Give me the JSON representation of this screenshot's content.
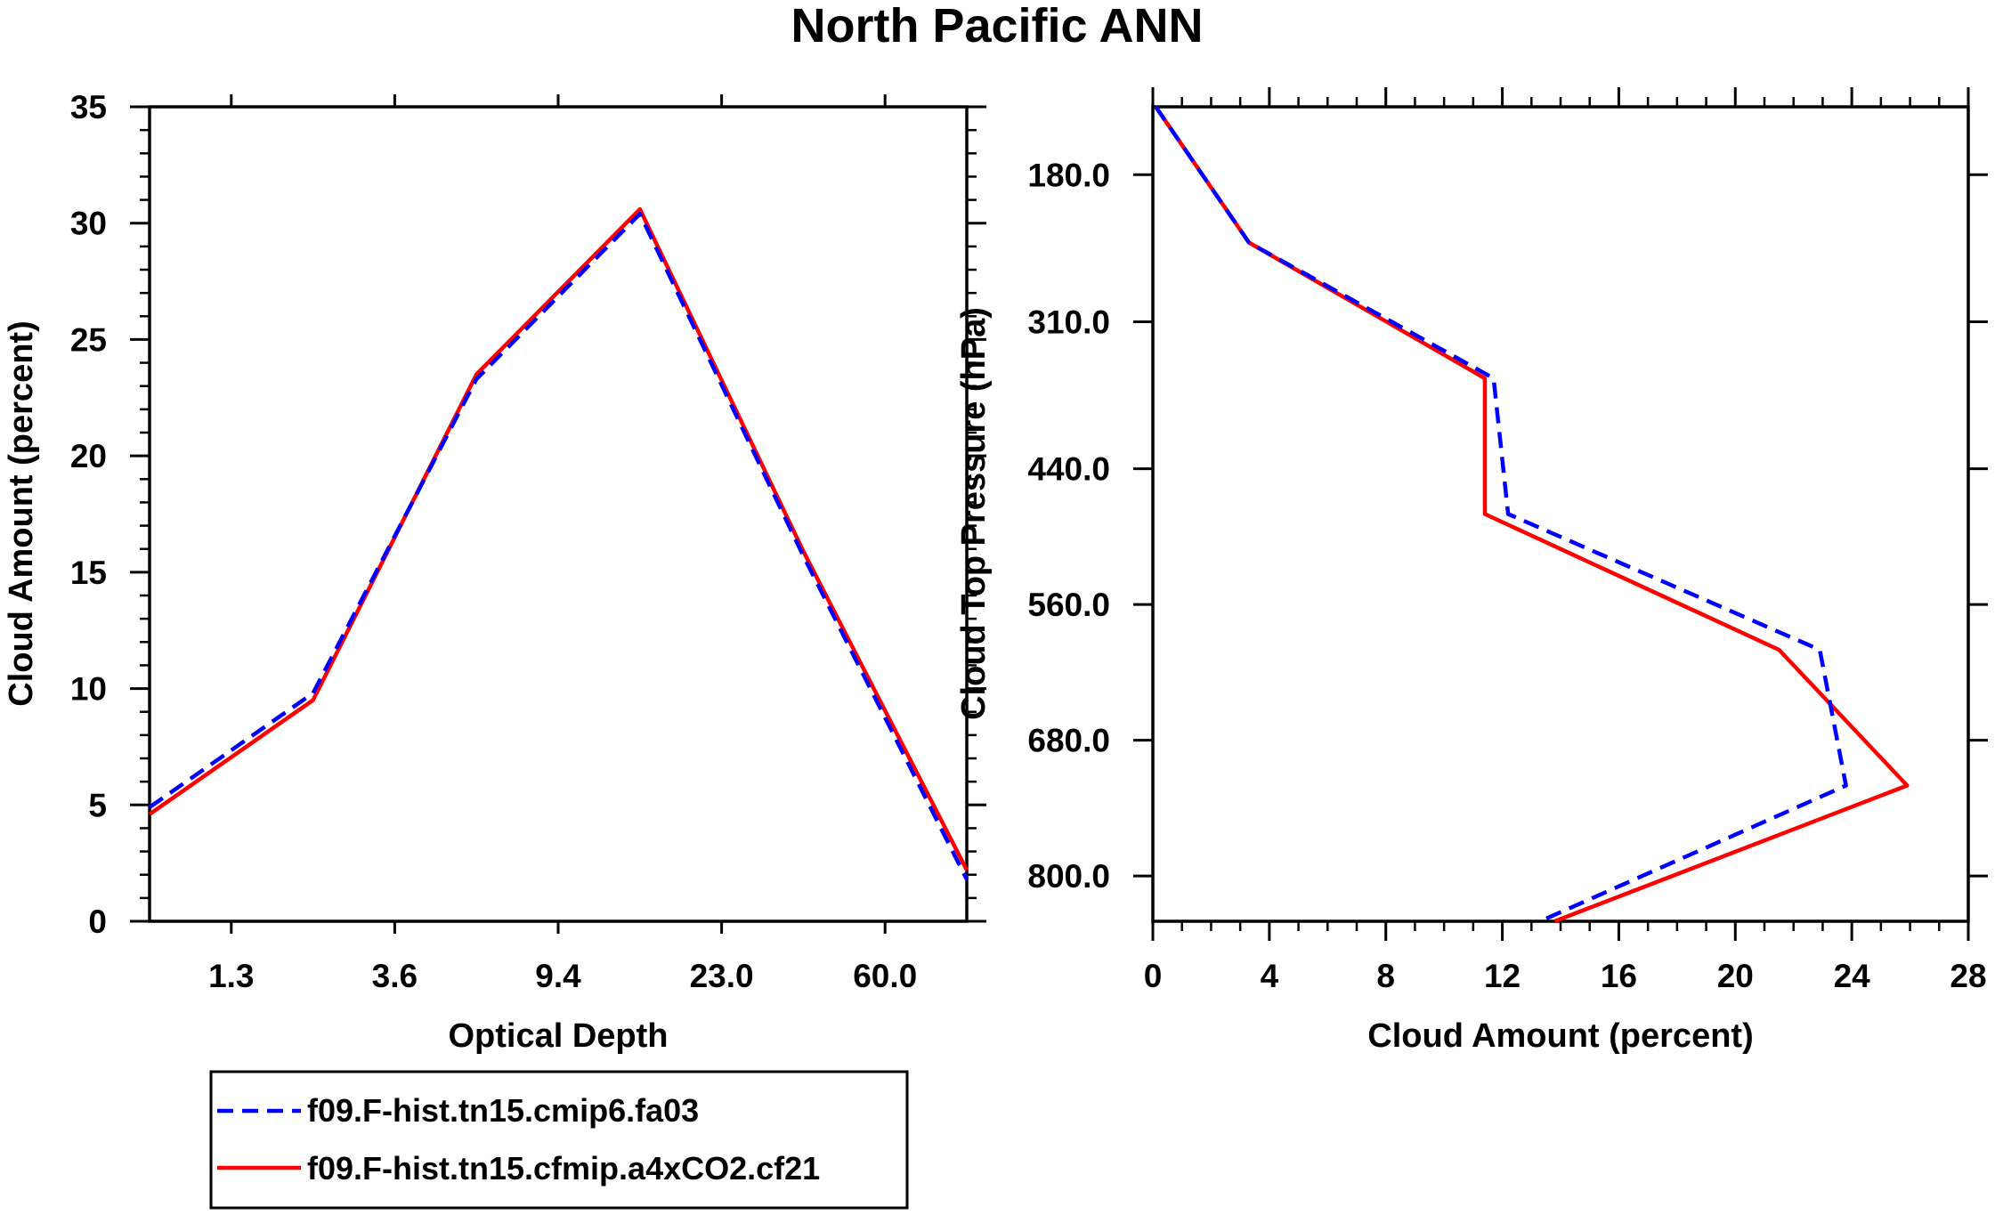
{
  "title": "North Pacific ANN",
  "colors": {
    "series_a": "#0000ff",
    "series_b": "#ff0000",
    "axis": "#000000"
  },
  "legend": [
    {
      "label": "f09.F-hist.tn15.cmip6.fa03",
      "color": "#0000ff",
      "dash": "dashed"
    },
    {
      "label": "f09.F-hist.tn15.cfmip.a4xCO2.cf21",
      "color": "#ff0000",
      "dash": "solid"
    }
  ],
  "chart_data": [
    {
      "type": "line",
      "xlabel": "Optical Depth",
      "ylabel": "Cloud Amount (percent)",
      "x_index": [
        0,
        1,
        2,
        3,
        4,
        5
      ],
      "xlim": [
        0,
        5
      ],
      "ylim": [
        0,
        35
      ],
      "x_tick_labels": [
        "1.3",
        "3.6",
        "9.4",
        "23.0",
        "60.0"
      ],
      "y_ticks": [
        0,
        5,
        10,
        15,
        20,
        25,
        30,
        35
      ],
      "y_tick_labels": [
        "0",
        "5",
        "10",
        "15",
        "20",
        "25",
        "30",
        "35"
      ],
      "series": [
        {
          "name": "f09.F-hist.tn15.cmip6.fa03",
          "values": [
            4.9,
            9.8,
            23.3,
            30.4,
            15.7,
            1.8
          ]
        },
        {
          "name": "f09.F-hist.tn15.cfmip.a4xCO2.cf21",
          "values": [
            4.6,
            9.5,
            23.5,
            30.6,
            15.9,
            2.2
          ]
        }
      ]
    },
    {
      "type": "line",
      "xlabel": "Cloud Amount (percent)",
      "ylabel": "Cloud Top Pressure (hPa)",
      "xlim": [
        0,
        28
      ],
      "ylim": [
        120,
        840
      ],
      "x_ticks": [
        0,
        4,
        8,
        12,
        16,
        20,
        24,
        28
      ],
      "x_tick_labels": [
        "0",
        "4",
        "8",
        "12",
        "16",
        "20",
        "24",
        "28"
      ],
      "y_ticks": [
        180,
        310,
        440,
        560,
        680,
        800
      ],
      "y_tick_labels": [
        "180.0",
        "310.0",
        "440.0",
        "560.0",
        "680.0",
        "800.0"
      ],
      "pressure_levels": [
        120,
        240,
        360,
        480,
        600,
        720,
        840
      ],
      "series": [
        {
          "name": "f09.F-hist.tn15.cmip6.fa03",
          "values": [
            0.1,
            3.3,
            11.7,
            12.2,
            22.9,
            23.8,
            13.3
          ]
        },
        {
          "name": "f09.F-hist.tn15.cfmip.a4xCO2.cf21",
          "values": [
            0.1,
            3.3,
            11.4,
            11.4,
            21.5,
            25.9,
            13.8
          ]
        }
      ]
    }
  ]
}
